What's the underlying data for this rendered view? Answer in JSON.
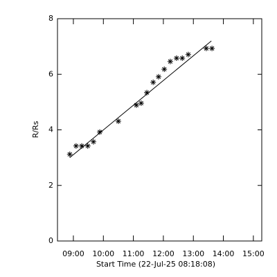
{
  "chart_data": {
    "type": "scatter",
    "xlabel": "Start Time (22-Jul-25 08:18:08)",
    "ylabel": "R/Rs",
    "xlim": [
      8.47,
      15.28
    ],
    "ylim": [
      0,
      8
    ],
    "xticks": [
      {
        "value": 9,
        "label": "09:00"
      },
      {
        "value": 10,
        "label": "10:00"
      },
      {
        "value": 11,
        "label": "11:00"
      },
      {
        "value": 12,
        "label": "12:00"
      },
      {
        "value": 13,
        "label": "13:00"
      },
      {
        "value": 14,
        "label": "14:00"
      },
      {
        "value": 15,
        "label": "15:00"
      }
    ],
    "yticks": [
      0,
      2,
      4,
      6,
      8
    ],
    "series": [
      {
        "color": "#000000",
        "marker": "asterisk",
        "x": [
          8.88,
          9.09,
          9.28,
          9.48,
          9.67,
          9.88,
          10.5,
          11.1,
          11.26,
          11.45,
          11.66,
          11.84,
          12.03,
          12.23,
          12.44,
          12.63,
          12.83,
          13.43,
          13.62
        ],
        "values": [
          3.12,
          3.42,
          3.42,
          3.42,
          3.57,
          3.92,
          4.31,
          4.89,
          4.96,
          5.34,
          5.71,
          5.91,
          6.18,
          6.46,
          6.58,
          6.58,
          6.71,
          6.93,
          6.93
        ]
      },
      {
        "color": "#000000",
        "marker": "line",
        "x": [
          8.88,
          13.6
        ],
        "values": [
          3.0,
          7.2
        ]
      }
    ]
  }
}
